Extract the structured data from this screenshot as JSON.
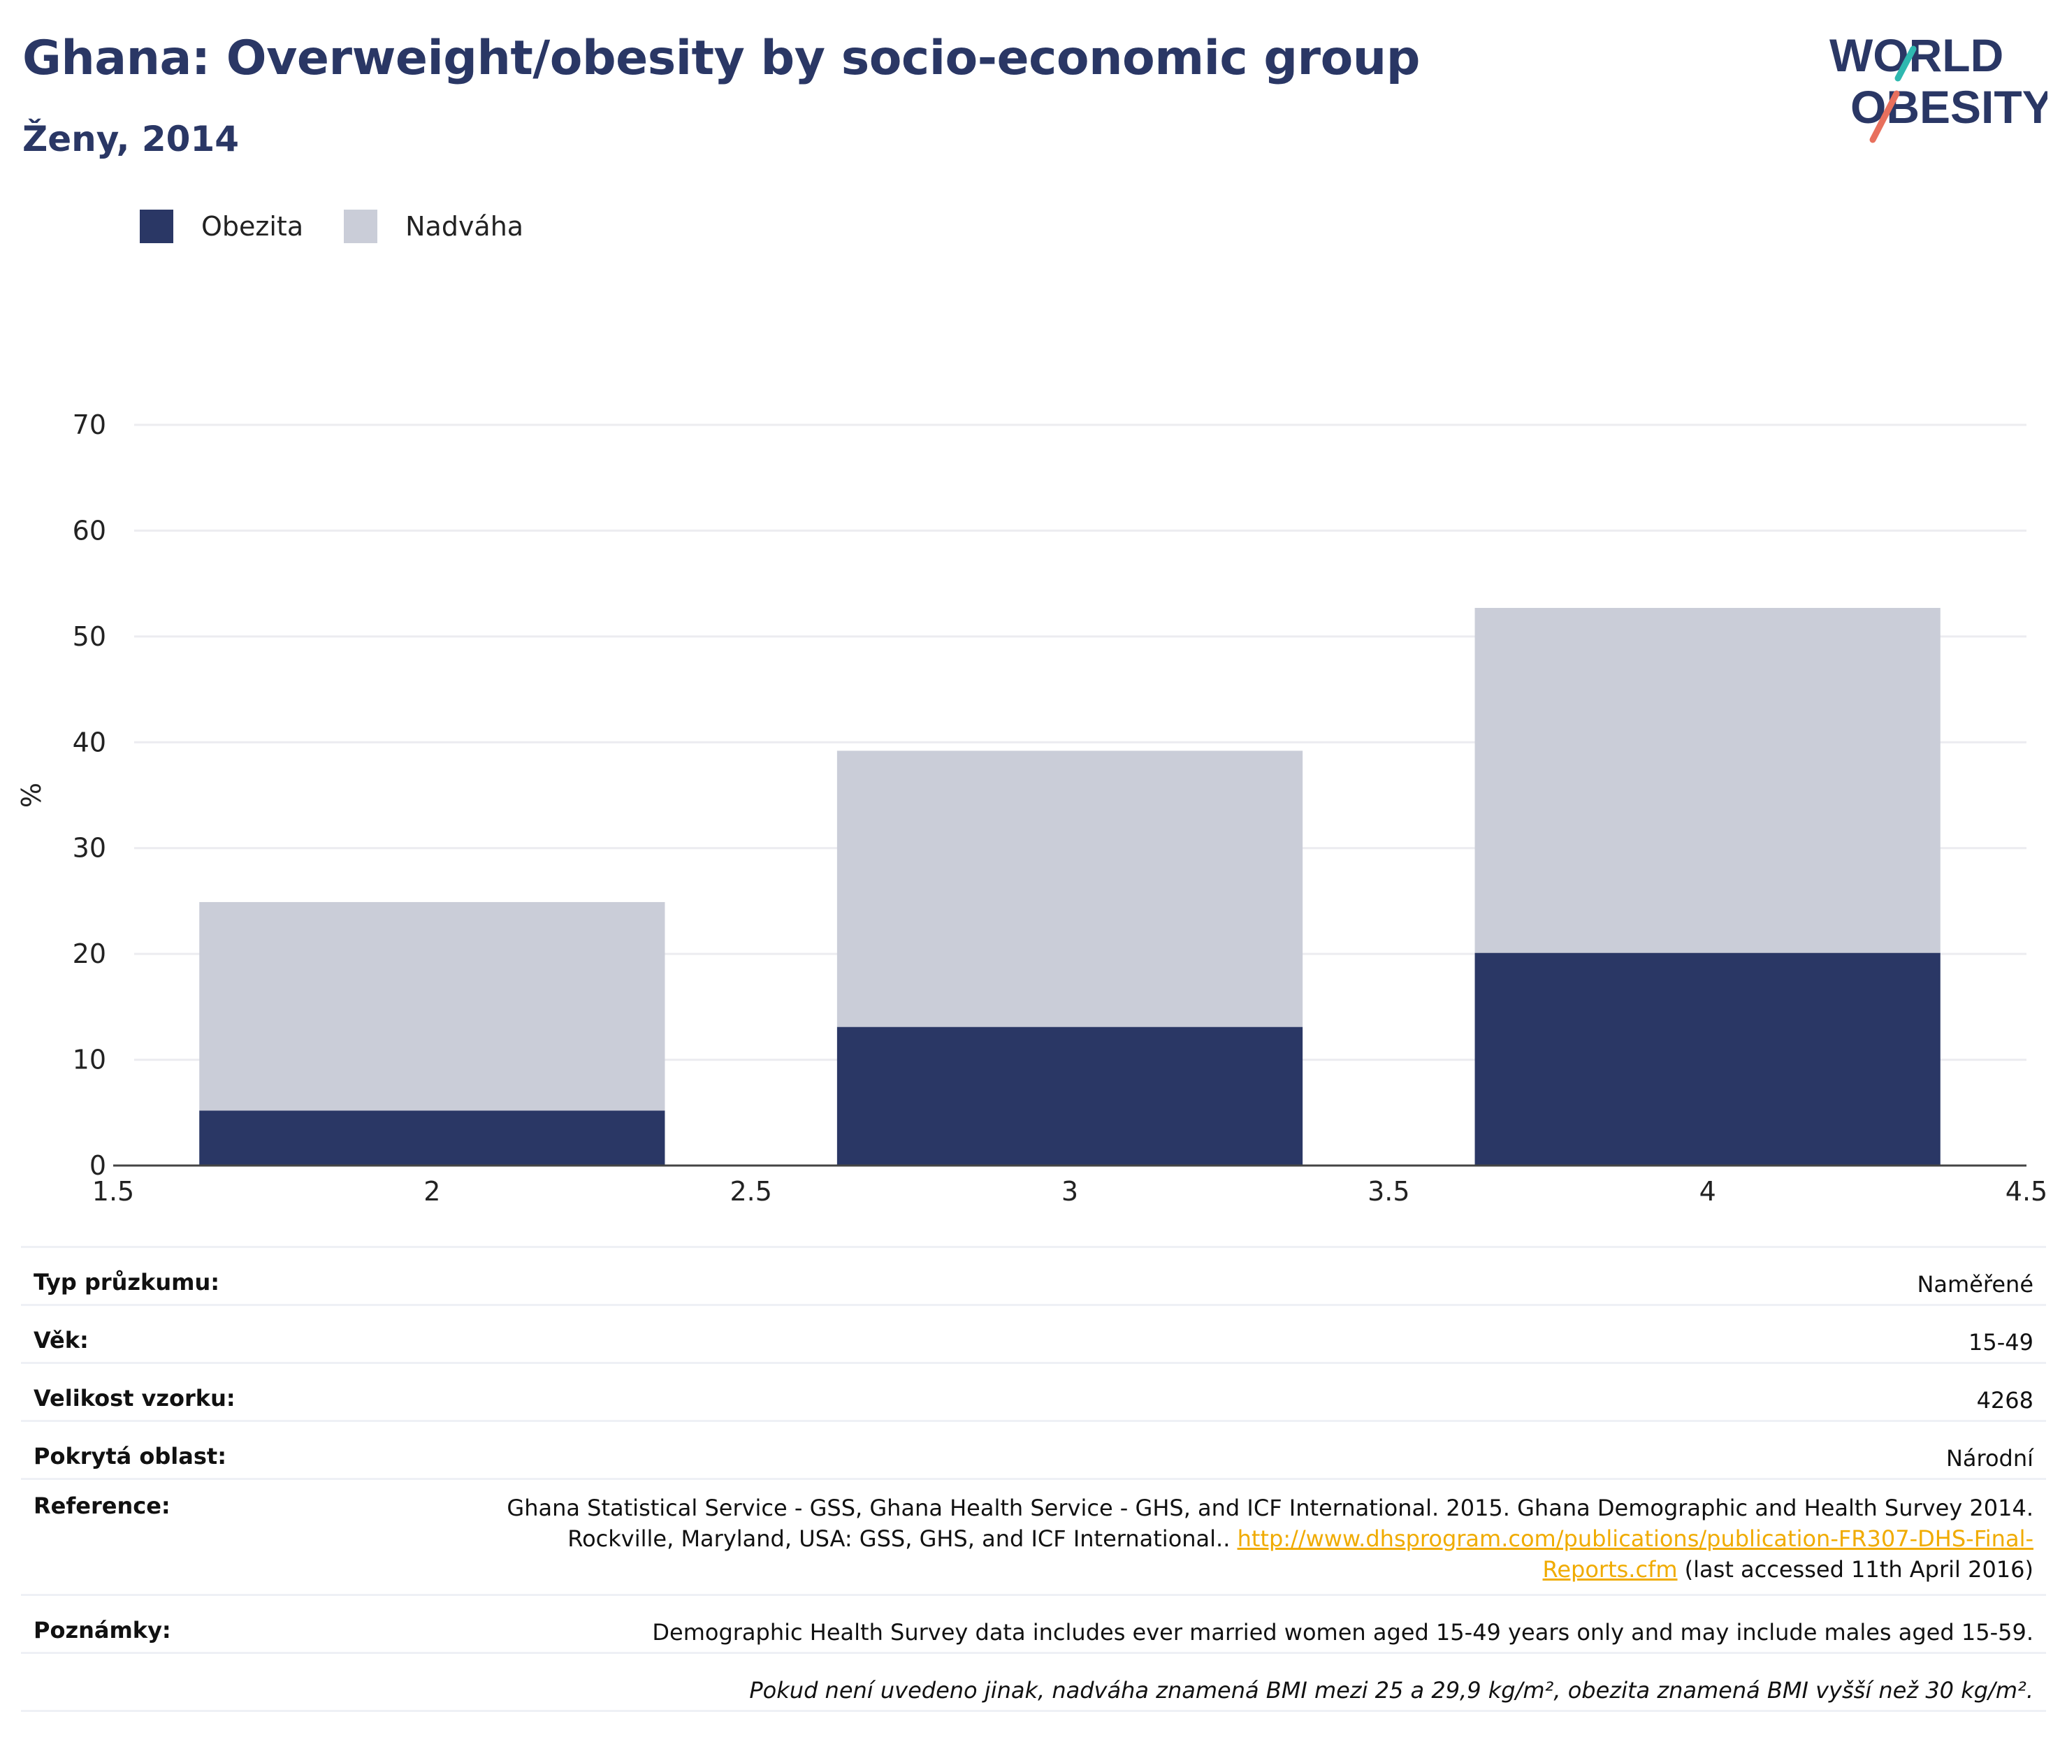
{
  "header": {
    "title": "Ghana: Overweight/obesity by socio-economic group",
    "subtitle": "Ženy, 2014"
  },
  "logo": {
    "line1": "WORLD",
    "line2": "OBESITY",
    "icon": "world-obesity-logo"
  },
  "legend": [
    {
      "label": "Obezita",
      "color": "#2a3765"
    },
    {
      "label": "Nadváha",
      "color": "#cacdd8"
    }
  ],
  "chart_data": {
    "type": "bar",
    "stacked": true,
    "x": [
      2,
      3,
      4
    ],
    "xlim": [
      1.5,
      4.5
    ],
    "x_ticks": [
      "1.5",
      "2",
      "2.5",
      "3",
      "3.5",
      "4",
      "4.5"
    ],
    "ylabel": "%",
    "ylim": [
      0,
      70
    ],
    "y_ticks": [
      "0",
      "10",
      "20",
      "30",
      "40",
      "50",
      "60",
      "70"
    ],
    "grid": true,
    "legend_position": "top-left",
    "series": [
      {
        "name": "Obezita",
        "values": [
          5.2,
          13.1,
          20.1
        ],
        "color": "#2a3765"
      },
      {
        "name": "Nadváha",
        "values": [
          19.7,
          26.1,
          32.6
        ],
        "color": "#cacdd8"
      }
    ]
  },
  "info": {
    "survey_type": {
      "label": "Typ průzkumu:",
      "value": "Naměřené"
    },
    "age": {
      "label": "Věk:",
      "value": "15-49"
    },
    "sample_size": {
      "label": "Velikost vzorku:",
      "value": "4268"
    },
    "area": {
      "label": "Pokrytá oblast:",
      "value": "Národní"
    },
    "reference": {
      "label": "Reference:",
      "line1": "Ghana Statistical Service - GSS, Ghana Health Service - GHS, and ICF International. 2015. Ghana Demographic and Health Survey 2014.",
      "line2": "Rockville, Maryland, USA: GSS, GHS, and ICF International..",
      "link_part1": "http://www.dhsprogram.com/publications/publication-FR307-DHS-Final-",
      "link_part2": "Reports.cfm",
      "accessed": "(last accessed 11th April 2016)"
    },
    "notes": {
      "label": "Poznámky:",
      "value": "Demographic Health Survey data includes ever married women aged 15-49 years only and may include males aged 15-59."
    },
    "footnote": "Pokud není uvedeno jinak, nadváha znamená BMI mezi 25 a 29,9 kg/m², obezita znamená BMI vyšší než 30 kg/m²."
  }
}
